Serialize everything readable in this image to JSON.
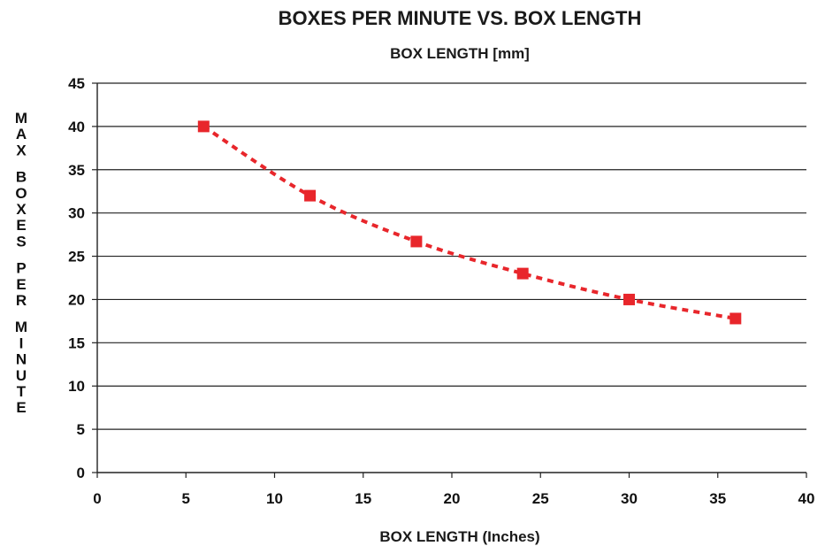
{
  "chart_data": {
    "type": "line",
    "title": "BOXES PER MINUTE VS. BOX LENGTH",
    "subtitle": "BOX LENGTH [mm]",
    "xlabel": "BOX LENGTH (Inches)",
    "ylabel": "MAX BOXES PER MINUTE",
    "xlim": [
      0,
      40
    ],
    "ylim": [
      0,
      45
    ],
    "x_ticks": [
      0,
      5,
      10,
      15,
      20,
      25,
      30,
      35,
      40
    ],
    "y_ticks": [
      0,
      5,
      10,
      15,
      20,
      25,
      30,
      35,
      40,
      45
    ],
    "grid": "horizontal",
    "series": [
      {
        "x": [
          6,
          12,
          18,
          24,
          30,
          36
        ],
        "values": [
          40,
          32,
          26.7,
          23,
          20,
          17.8
        ],
        "color": "#e8262b",
        "marker": "square",
        "line_style": "dashed"
      }
    ]
  }
}
